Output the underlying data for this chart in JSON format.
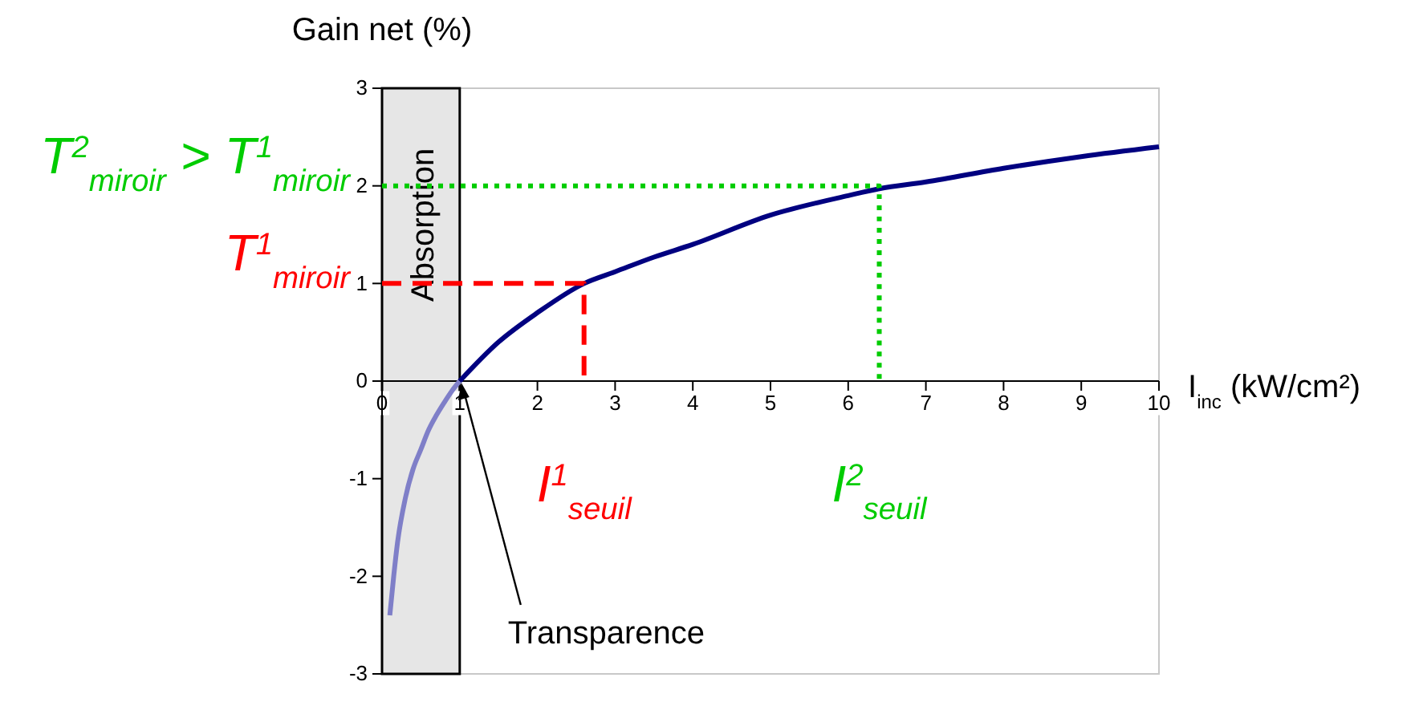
{
  "chart_data": {
    "type": "line",
    "ylabel": "Gain net (%)",
    "xlabel": "I$_{inc}$ (kW/cm²)",
    "xlim": [
      0,
      10
    ],
    "ylim": [
      -3,
      3
    ],
    "xticks": [
      0,
      1,
      2,
      3,
      4,
      5,
      6,
      7,
      8,
      9,
      10
    ],
    "yticks": [
      -3,
      -2,
      -1,
      0,
      1,
      2,
      3
    ],
    "grid": false,
    "bands": [
      {
        "axis": "x",
        "from": 0,
        "to": 1,
        "label": "Absorption",
        "color": "#e6e6e6"
      }
    ],
    "series": [
      {
        "color": "#7f7fc8",
        "line_style": "solid",
        "x": [
          0.1,
          0.15,
          0.2,
          0.3,
          0.4,
          0.5,
          0.6,
          0.7,
          0.8,
          0.9,
          1
        ],
        "values": [
          -2.4,
          -2.0,
          -1.65,
          -1.2,
          -0.9,
          -0.7,
          -0.5,
          -0.35,
          -0.22,
          -0.1,
          0
        ]
      },
      {
        "color": "#000080",
        "line_style": "solid",
        "x": [
          1,
          1.5,
          2,
          2.6,
          3,
          3.5,
          4,
          5,
          6,
          6.4,
          7,
          8,
          9,
          10
        ],
        "values": [
          0,
          0.4,
          0.7,
          1.0,
          1.12,
          1.27,
          1.4,
          1.7,
          1.9,
          1.97,
          2.04,
          2.18,
          2.3,
          2.4
        ]
      },
      {
        "color": "#ff0000",
        "line_style": "dashed",
        "x": [
          0,
          2.6,
          2.6
        ],
        "values": [
          1,
          1,
          0
        ]
      },
      {
        "color": "#00cc00",
        "line_style": "dotted",
        "x": [
          0,
          6.4,
          6.4
        ],
        "values": [
          2,
          2,
          0
        ]
      }
    ],
    "annotations": [
      {
        "text": "T$^{2}$$_{miroir}$ > T$^{1}$$_{miroir}$",
        "x": 0,
        "y": 2
      },
      {
        "text": "T$^{1}$$_{miroir}$",
        "x": 0,
        "y": 1
      },
      {
        "text": "I$^{1}$$_{seuil}$",
        "x": 2.6,
        "y": 0
      },
      {
        "text": "I$^{2}$$_{seuil}$",
        "x": 6.4,
        "y": 0
      },
      {
        "text": "Transparence",
        "x": 1,
        "y": 0
      }
    ]
  }
}
